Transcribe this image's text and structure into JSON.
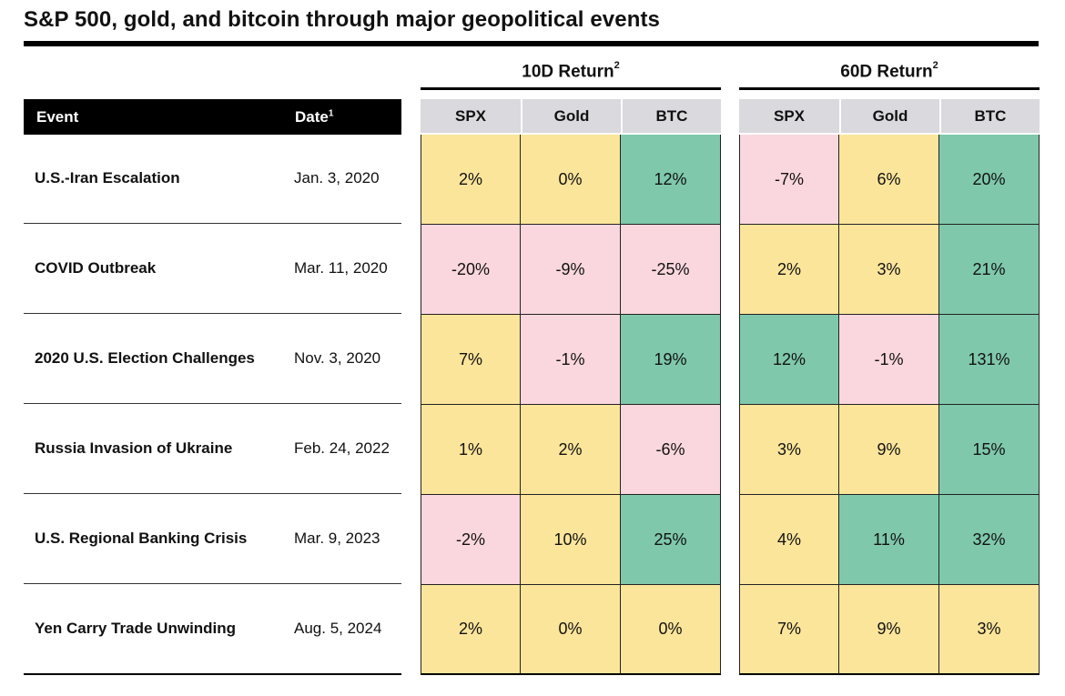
{
  "title": "S&P 500, gold, and bitcoin through major geopolitical events",
  "colors": {
    "negative": "#fad7de",
    "neutral": "#fbe59b",
    "positive": "#7fc8ac",
    "header_bg": "#d9d9de"
  },
  "headers": {
    "event": "Event",
    "date": "Date",
    "date_sup": "1"
  },
  "chart_data": {
    "type": "table",
    "title": "S&P 500, gold, and bitcoin through major geopolitical events",
    "groups": [
      {
        "label": "10D Return",
        "sup": "2",
        "columns": [
          "SPX",
          "Gold",
          "BTC"
        ]
      },
      {
        "label": "60D Return",
        "sup": "2",
        "columns": [
          "SPX",
          "Gold",
          "BTC"
        ]
      }
    ],
    "rows": [
      {
        "event": "U.S.-Iran Escalation",
        "date": "Jan. 3, 2020",
        "values": [
          [
            "2%",
            "0%",
            "12%"
          ],
          [
            "-7%",
            "6%",
            "20%"
          ]
        ],
        "colors": [
          [
            "neutral",
            "neutral",
            "positive"
          ],
          [
            "negative",
            "neutral",
            "positive"
          ]
        ]
      },
      {
        "event": "COVID Outbreak",
        "date": "Mar. 11, 2020",
        "values": [
          [
            "-20%",
            "-9%",
            "-25%"
          ],
          [
            "2%",
            "3%",
            "21%"
          ]
        ],
        "colors": [
          [
            "negative",
            "negative",
            "negative"
          ],
          [
            "neutral",
            "neutral",
            "positive"
          ]
        ]
      },
      {
        "event": "2020 U.S. Election Challenges",
        "date": "Nov. 3, 2020",
        "values": [
          [
            "7%",
            "-1%",
            "19%"
          ],
          [
            "12%",
            "-1%",
            "131%"
          ]
        ],
        "colors": [
          [
            "neutral",
            "negative",
            "positive"
          ],
          [
            "positive",
            "negative",
            "positive"
          ]
        ]
      },
      {
        "event": "Russia Invasion of Ukraine",
        "date": "Feb. 24, 2022",
        "values": [
          [
            "1%",
            "2%",
            "-6%"
          ],
          [
            "3%",
            "9%",
            "15%"
          ]
        ],
        "colors": [
          [
            "neutral",
            "neutral",
            "negative"
          ],
          [
            "neutral",
            "neutral",
            "positive"
          ]
        ]
      },
      {
        "event": "U.S. Regional Banking Crisis",
        "date": "Mar. 9, 2023",
        "values": [
          [
            "-2%",
            "10%",
            "25%"
          ],
          [
            "4%",
            "11%",
            "32%"
          ]
        ],
        "colors": [
          [
            "negative",
            "neutral",
            "positive"
          ],
          [
            "neutral",
            "positive",
            "positive"
          ]
        ]
      },
      {
        "event": "Yen Carry Trade Unwinding",
        "date": "Aug. 5, 2024",
        "values": [
          [
            "2%",
            "0%",
            "0%"
          ],
          [
            "7%",
            "9%",
            "3%"
          ]
        ],
        "colors": [
          [
            "neutral",
            "neutral",
            "neutral"
          ],
          [
            "neutral",
            "neutral",
            "neutral"
          ]
        ]
      }
    ]
  }
}
